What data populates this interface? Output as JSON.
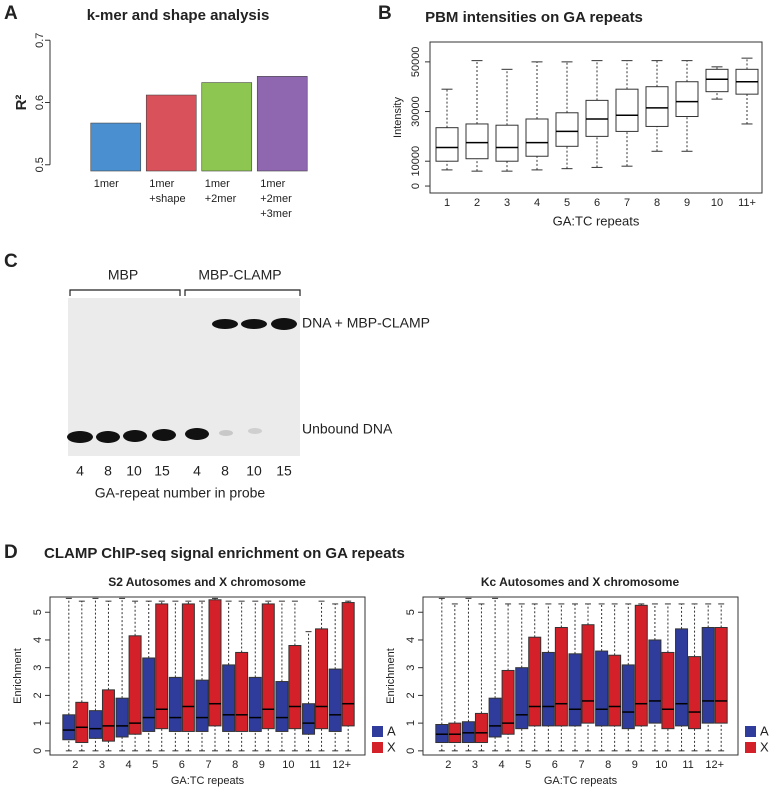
{
  "panel_labels": [
    "A",
    "B",
    "C",
    "D"
  ],
  "panel_d_heading": "CLAMP ChIP-seq signal enrichment on GA repeats",
  "chart_data": [
    {
      "type": "bar",
      "title": "k-mer and shape analysis",
      "y_label": "R²",
      "categories": [
        "1mer",
        "1mer\n+shape",
        "1mer\n+2mer",
        "1mer\n+2mer\n+3mer"
      ],
      "values": [
        0.567,
        0.612,
        0.632,
        0.642
      ],
      "colors": [
        "#4a90d0",
        "#d9525b",
        "#8dc650",
        "#8e67b0"
      ],
      "ylim": [
        0.49,
        0.71
      ],
      "yticks": [
        0.5,
        0.6,
        0.7
      ]
    },
    {
      "type": "box",
      "title": "PBM intensities on GA repeats",
      "x_label": "GA:TC repeats",
      "y_label": "Intensity",
      "categories": [
        "1",
        "2",
        "3",
        "4",
        "5",
        "6",
        "7",
        "8",
        "9",
        "10",
        "11+"
      ],
      "color": "#ffffff",
      "low": [
        6500,
        6000,
        6000,
        6500,
        7000,
        7500,
        8000,
        14000,
        14000,
        35000,
        25000
      ],
      "q1": [
        10000,
        11000,
        10000,
        12000,
        16000,
        20000,
        22000,
        24000,
        28000,
        38000,
        37000
      ],
      "median": [
        15500,
        17500,
        15500,
        17500,
        22000,
        27000,
        28500,
        31500,
        34000,
        43000,
        42000
      ],
      "q3": [
        23500,
        25000,
        24500,
        27000,
        29500,
        34500,
        39000,
        40000,
        42000,
        47000,
        47000
      ],
      "high": [
        39000,
        50500,
        47000,
        50000,
        50000,
        50500,
        50500,
        50500,
        50500,
        48000,
        51500
      ],
      "ylim": [
        -2800,
        58000
      ],
      "yticks": [
        0,
        10000,
        30000,
        50000
      ]
    },
    {
      "type": "grouped-box",
      "title": "S2 Autosomes and X chromosome",
      "x_label": "GA:TC repeats",
      "y_label": "Enrichment",
      "categories": [
        "2",
        "3",
        "4",
        "5",
        "6",
        "7",
        "8",
        "9",
        "10",
        "11",
        "12+"
      ],
      "legend": "right",
      "series": [
        {
          "name": "A",
          "color": "#2f3c9c",
          "low": [
            0,
            0,
            0,
            0,
            0,
            0,
            0,
            0,
            0,
            0,
            0
          ],
          "q1": [
            0.4,
            0.45,
            0.5,
            0.7,
            0.7,
            0.7,
            0.7,
            0.7,
            0.7,
            0.6,
            0.7
          ],
          "median": [
            0.75,
            0.8,
            0.9,
            1.2,
            1.2,
            1.2,
            1.3,
            1.2,
            1.2,
            1.0,
            1.3
          ],
          "q3": [
            1.3,
            1.45,
            1.9,
            3.35,
            2.65,
            2.55,
            3.1,
            2.65,
            2.5,
            1.7,
            2.95
          ],
          "high": [
            5.5,
            5.5,
            5.5,
            5.4,
            5.4,
            5.4,
            5.4,
            5.4,
            5.4,
            4.3,
            5.3
          ]
        },
        {
          "name": "X",
          "color": "#d42029",
          "low": [
            0,
            0,
            0,
            0,
            0,
            0,
            0,
            0,
            0,
            0,
            0
          ],
          "q1": [
            0.3,
            0.35,
            0.6,
            0.8,
            0.7,
            0.9,
            0.7,
            0.8,
            0.8,
            0.8,
            0.9
          ],
          "median": [
            0.85,
            0.9,
            1.0,
            1.5,
            1.6,
            1.7,
            1.3,
            1.5,
            1.6,
            1.6,
            1.7
          ],
          "q3": [
            1.75,
            2.2,
            4.15,
            5.3,
            5.3,
            5.45,
            3.55,
            5.3,
            3.8,
            4.4,
            5.35
          ],
          "high": [
            5.4,
            5.4,
            5.4,
            5.4,
            5.4,
            5.5,
            5.4,
            5.4,
            5.4,
            5.4,
            5.4
          ]
        }
      ],
      "ylim": [
        -0.15,
        5.55
      ],
      "yticks": [
        0,
        1,
        2,
        3,
        4,
        5
      ]
    },
    {
      "type": "grouped-box",
      "title": "Kc Autosomes and X chromosome",
      "x_label": "GA:TC repeats",
      "y_label": "Enrichment",
      "categories": [
        "2",
        "3",
        "4",
        "5",
        "6",
        "7",
        "8",
        "9",
        "10",
        "11",
        "12+"
      ],
      "legend": "right",
      "series": [
        {
          "name": "A",
          "color": "#2f3c9c",
          "low": [
            0,
            0,
            0,
            0,
            0,
            0,
            0,
            0,
            0,
            0,
            0
          ],
          "q1": [
            0.3,
            0.3,
            0.5,
            0.8,
            0.9,
            0.9,
            0.9,
            0.8,
            1.0,
            0.9,
            1.0
          ],
          "median": [
            0.6,
            0.65,
            0.9,
            1.3,
            1.6,
            1.5,
            1.5,
            1.4,
            1.8,
            1.7,
            1.8
          ],
          "q3": [
            0.95,
            1.05,
            1.9,
            3.0,
            3.55,
            3.5,
            3.6,
            3.1,
            4.0,
            4.4,
            4.45
          ],
          "high": [
            5.5,
            5.5,
            5.5,
            5.3,
            5.3,
            5.3,
            5.3,
            5.3,
            5.3,
            5.3,
            5.3
          ]
        },
        {
          "name": "X",
          "color": "#d42029",
          "low": [
            0,
            0,
            0,
            0,
            0,
            0,
            0,
            0,
            0,
            0,
            0
          ],
          "q1": [
            0.3,
            0.3,
            0.6,
            0.9,
            0.9,
            1.0,
            0.9,
            0.9,
            0.8,
            0.8,
            1.0
          ],
          "median": [
            0.6,
            0.65,
            1.0,
            1.6,
            1.7,
            1.8,
            1.6,
            1.7,
            1.5,
            1.4,
            1.8
          ],
          "q3": [
            1.0,
            1.35,
            2.9,
            4.1,
            4.45,
            4.55,
            3.45,
            5.25,
            3.55,
            3.4,
            4.45
          ],
          "high": [
            5.3,
            5.3,
            5.3,
            5.3,
            5.3,
            5.3,
            5.3,
            5.3,
            5.3,
            5.3,
            5.3
          ]
        }
      ],
      "ylim": [
        -0.15,
        5.55
      ],
      "yticks": [
        0,
        1,
        2,
        3,
        4,
        5
      ]
    }
  ],
  "gel": {
    "groups": [
      "MBP",
      "MBP-CLAMP"
    ],
    "band_labels": [
      "DNA + MBP-CLAMP",
      "Unbound DNA"
    ],
    "lanes": [
      "4",
      "8",
      "10",
      "15",
      "4",
      "8",
      "10",
      "15"
    ],
    "x_label": "GA-repeat number in probe"
  }
}
